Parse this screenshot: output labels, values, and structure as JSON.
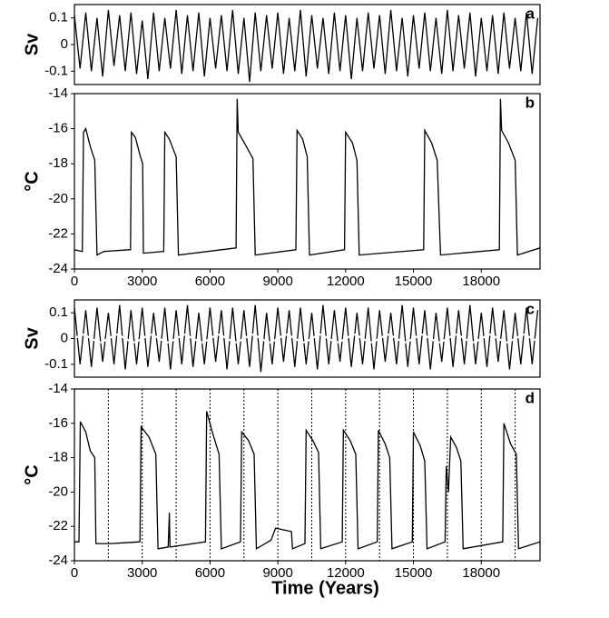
{
  "chart_data": [
    {
      "type": "line",
      "panel": "a",
      "ylabel": "Sv",
      "xlim": [
        0,
        20600
      ],
      "ylim": [
        -0.15,
        0.15
      ],
      "yticks": [
        0.1,
        0,
        -0.1
      ],
      "series": [
        {
          "color": "#000000",
          "x": [
            0,
            250,
            500,
            750,
            1000,
            1250,
            1500,
            1750,
            2000,
            2250,
            2500,
            2750,
            3000,
            3250,
            3500,
            3750,
            4000,
            4250,
            4500,
            4750,
            5000,
            5250,
            5500,
            5750,
            6000,
            6250,
            6500,
            6750,
            7000,
            7250,
            7500,
            7750,
            8000,
            8250,
            8500,
            8750,
            9000,
            9250,
            9500,
            9750,
            10000,
            10250,
            10500,
            10750,
            11000,
            11250,
            11500,
            11750,
            12000,
            12250,
            12500,
            12750,
            13000,
            13250,
            13500,
            13750,
            14000,
            14250,
            14500,
            14750,
            15000,
            15250,
            15500,
            15750,
            16000,
            16250,
            16500,
            16750,
            17000,
            17250,
            17500,
            17750,
            18000,
            18250,
            18500,
            18750,
            19000,
            19250,
            19500,
            19750,
            20000,
            20250,
            20500
          ],
          "values": [
            0.11,
            -0.09,
            0.12,
            -0.1,
            0.1,
            -0.12,
            0.13,
            -0.08,
            0.11,
            -0.1,
            0.12,
            -0.11,
            0.09,
            -0.13,
            0.12,
            -0.1,
            0.1,
            -0.09,
            0.13,
            -0.11,
            0.11,
            -0.1,
            0.12,
            -0.12,
            0.1,
            -0.09,
            0.11,
            -0.1,
            0.13,
            -0.11,
            0.1,
            -0.14,
            0.12,
            -0.1,
            0.11,
            -0.09,
            0.12,
            -0.11,
            0.1,
            -0.1,
            0.13,
            -0.12,
            0.11,
            -0.09,
            0.1,
            -0.11,
            0.12,
            -0.1,
            0.11,
            -0.13,
            0.1,
            -0.1,
            0.12,
            -0.09,
            0.11,
            -0.11,
            0.13,
            -0.1,
            0.1,
            -0.12,
            0.11,
            -0.09,
            0.12,
            -0.1,
            0.1,
            -0.11,
            0.13,
            -0.1,
            0.11,
            -0.09,
            0.12,
            -0.12,
            0.1,
            -0.1,
            0.11,
            -0.11,
            0.12,
            -0.09,
            0.1,
            -0.1,
            0.12,
            -0.11,
            0.1
          ]
        }
      ]
    },
    {
      "type": "line",
      "panel": "b",
      "ylabel": "°C",
      "xlim": [
        0,
        20600
      ],
      "ylim": [
        -24,
        -14
      ],
      "yticks": [
        -14,
        -16,
        -18,
        -20,
        -22,
        -24
      ],
      "xticks": [
        0,
        3000,
        6000,
        9000,
        12000,
        15000,
        18000
      ],
      "series": [
        {
          "color": "#000000",
          "x": [
            0,
            350,
            400,
            500,
            700,
            900,
            1000,
            1300,
            2400,
            2480,
            2520,
            2700,
            2900,
            3020,
            3050,
            3950,
            4000,
            4200,
            4500,
            4600,
            6500,
            7150,
            7200,
            7250,
            7600,
            7900,
            8000,
            9800,
            9850,
            10100,
            10300,
            10400,
            11950,
            12000,
            12300,
            12500,
            12600,
            15450,
            15500,
            15800,
            16050,
            16200,
            18800,
            18850,
            18900,
            19200,
            19500,
            19600,
            20600
          ],
          "values": [
            -22.9,
            -23,
            -16.2,
            -16,
            -17,
            -17.8,
            -23.2,
            -23,
            -22.9,
            -22.9,
            -16.2,
            -16.5,
            -17.5,
            -18,
            -23.1,
            -23,
            -16.2,
            -16.6,
            -17.6,
            -23.2,
            -22.9,
            -22.8,
            -14.3,
            -16.2,
            -17,
            -17.7,
            -23.2,
            -22.9,
            -16.1,
            -16.6,
            -17.6,
            -23.2,
            -22.9,
            -16.2,
            -16.8,
            -17.8,
            -23.2,
            -22.9,
            -16.1,
            -16.8,
            -17.8,
            -23.2,
            -22.9,
            -14.3,
            -16.1,
            -16.8,
            -17.8,
            -23.2,
            -22.8
          ]
        }
      ]
    },
    {
      "type": "line",
      "panel": "c",
      "ylabel": "Sv",
      "xlim": [
        0,
        20600
      ],
      "ylim": [
        -0.15,
        0.15
      ],
      "yticks": [
        0.1,
        0,
        -0.1
      ],
      "series": [
        {
          "color": "#000000",
          "x": [
            0,
            250,
            500,
            750,
            1000,
            1250,
            1500,
            1750,
            2000,
            2250,
            2500,
            2750,
            3000,
            3250,
            3500,
            3750,
            4000,
            4250,
            4500,
            4750,
            5000,
            5250,
            5500,
            5750,
            6000,
            6250,
            6500,
            6750,
            7000,
            7250,
            7500,
            7750,
            8000,
            8250,
            8500,
            8750,
            9000,
            9250,
            9500,
            9750,
            10000,
            10250,
            10500,
            10750,
            11000,
            11250,
            11500,
            11750,
            12000,
            12250,
            12500,
            12750,
            13000,
            13250,
            13500,
            13750,
            14000,
            14250,
            14500,
            14750,
            15000,
            15250,
            15500,
            15750,
            16000,
            16250,
            16500,
            16750,
            17000,
            17250,
            17500,
            17750,
            18000,
            18250,
            18500,
            18750,
            19000,
            19250,
            19500,
            19750,
            20000,
            20250,
            20500
          ],
          "values": [
            0.12,
            -0.1,
            0.11,
            -0.11,
            0.12,
            -0.09,
            0.1,
            -0.1,
            0.13,
            -0.12,
            0.11,
            -0.1,
            0.12,
            -0.11,
            0.1,
            -0.09,
            0.12,
            -0.12,
            0.11,
            -0.1,
            0.13,
            -0.11,
            0.1,
            -0.1,
            0.12,
            -0.09,
            0.11,
            -0.12,
            0.12,
            -0.1,
            0.11,
            -0.11,
            0.13,
            -0.13,
            0.1,
            -0.1,
            0.12,
            -0.09,
            0.11,
            -0.11,
            0.12,
            -0.1,
            0.1,
            -0.12,
            0.13,
            -0.1,
            0.11,
            -0.09,
            0.12,
            -0.11,
            0.1,
            -0.1,
            0.12,
            -0.12,
            0.11,
            -0.09,
            0.1,
            -0.1,
            0.13,
            -0.11,
            0.12,
            -0.1,
            0.11,
            -0.12,
            0.1,
            -0.09,
            0.12,
            -0.11,
            0.11,
            -0.1,
            0.13,
            -0.1,
            0.1,
            -0.11,
            0.12,
            -0.09,
            0.11,
            -0.12,
            0.1,
            -0.1,
            0.12,
            -0.1,
            0.11
          ]
        },
        {
          "color": "#ffffff",
          "x": [
            0,
            375,
            750,
            1125,
            1500,
            1875,
            2250,
            2625,
            3000,
            3375,
            3750,
            4125,
            4500,
            4875,
            5250,
            5625,
            6000,
            6375,
            6750,
            7125,
            7500,
            7875,
            8250,
            8625,
            9000,
            9375,
            9750,
            10125,
            10500,
            10875,
            11250,
            11625,
            12000,
            12375,
            12750,
            13125,
            13500,
            13875,
            14250,
            14625,
            15000,
            15375,
            15750,
            16125,
            16500,
            16875,
            17250,
            17625,
            18000,
            18375,
            18750,
            19125,
            19500,
            19875,
            20250,
            20625
          ],
          "values": [
            0,
            0.015,
            0,
            -0.015,
            0,
            0.015,
            0,
            -0.015,
            0,
            0.015,
            0,
            -0.015,
            0,
            0.015,
            0,
            -0.015,
            0,
            0.015,
            0,
            -0.015,
            0,
            0.015,
            0,
            -0.015,
            0,
            0.015,
            0,
            -0.015,
            0,
            0.015,
            0,
            -0.015,
            0,
            0.015,
            0,
            -0.015,
            0,
            0.015,
            0,
            -0.015,
            0,
            0.015,
            0,
            -0.015,
            0,
            0.015,
            0,
            -0.015,
            0,
            0.015,
            0,
            -0.015,
            0,
            0.015,
            0,
            -0.015
          ]
        }
      ]
    },
    {
      "type": "line",
      "panel": "d",
      "ylabel": "°C",
      "xlabel": "Time (Years)",
      "xlim": [
        0,
        20600
      ],
      "ylim": [
        -24,
        -14
      ],
      "yticks": [
        -14,
        -16,
        -18,
        -20,
        -22,
        -24
      ],
      "xticks": [
        0,
        3000,
        6000,
        9000,
        12000,
        15000,
        18000
      ],
      "vlines": [
        1500,
        3000,
        4500,
        6000,
        7500,
        9000,
        10500,
        12000,
        13500,
        15000,
        16500,
        18000,
        19500
      ],
      "series": [
        {
          "color": "#000000",
          "x": [
            0,
            200,
            260,
            500,
            700,
            900,
            950,
            1600,
            2900,
            2950,
            3300,
            3600,
            3700,
            4150,
            4200,
            4230,
            5800,
            5850,
            6100,
            6400,
            6500,
            7350,
            7400,
            7700,
            7950,
            8050,
            8700,
            8900,
            9600,
            9650,
            10200,
            10250,
            10550,
            10800,
            10900,
            11850,
            11900,
            12200,
            12450,
            12550,
            13400,
            13450,
            13750,
            13950,
            14050,
            14950,
            15000,
            15300,
            15500,
            15600,
            16400,
            16450,
            16550,
            16650,
            16900,
            17100,
            17200,
            18950,
            19000,
            19300,
            19550,
            19650,
            20600
          ],
          "values": [
            -22.9,
            -22.9,
            -15.9,
            -16.5,
            -17.6,
            -18,
            -23,
            -23,
            -22.9,
            -16.2,
            -16.8,
            -17.8,
            -23.3,
            -23.2,
            -21.2,
            -23.2,
            -22.9,
            -15.3,
            -16.5,
            -17.8,
            -23.3,
            -22.9,
            -16.5,
            -17,
            -17.8,
            -23.3,
            -22.8,
            -22.1,
            -22.3,
            -23.3,
            -23,
            -16.4,
            -17,
            -17.7,
            -23.3,
            -22.9,
            -16.4,
            -17,
            -17.8,
            -23.3,
            -22.9,
            -16.4,
            -17.2,
            -18,
            -23.3,
            -22.9,
            -16.5,
            -17.3,
            -18.2,
            -23.3,
            -22.9,
            -18.5,
            -20,
            -16.8,
            -17.4,
            -18.2,
            -23.3,
            -22.9,
            -16,
            -17.2,
            -17.8,
            -23.3,
            -22.9
          ]
        }
      ]
    }
  ]
}
